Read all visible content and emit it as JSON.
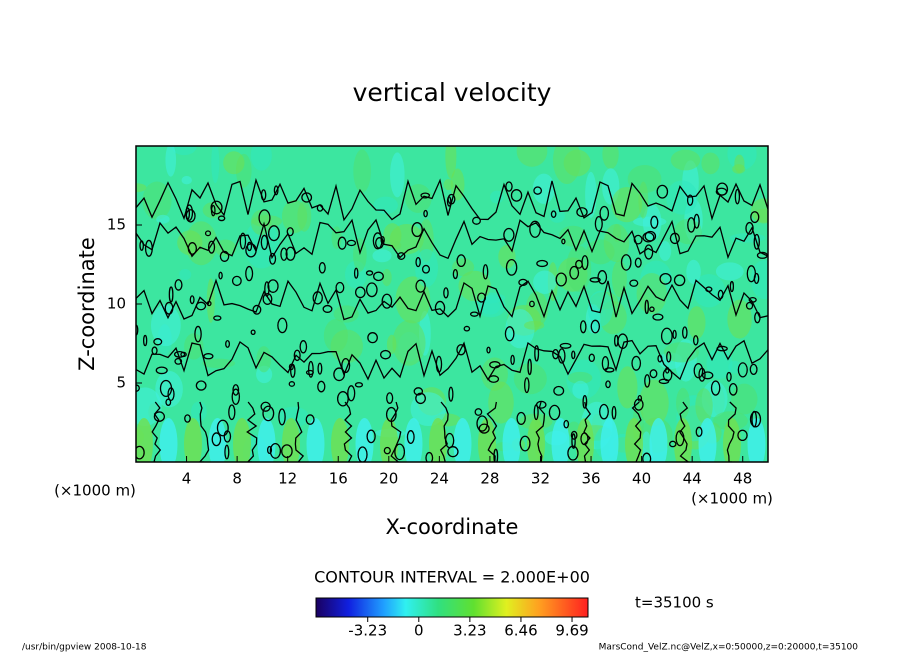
{
  "chart_data": {
    "type": "contour",
    "title": "vertical velocity",
    "x_label": "X-coordinate",
    "y_label": "Z-coordinate",
    "x_unit": "(×1000 m)",
    "xlim": [
      0,
      50
    ],
    "xticks": [
      4,
      8,
      12,
      16,
      20,
      24,
      28,
      32,
      36,
      40,
      44,
      48
    ],
    "ylim": [
      0,
      20
    ],
    "yticks": [
      5,
      10,
      15
    ],
    "contour_interval": "CONTOUR INTERVAL = 2.000E+00",
    "time_label": "t=35100 s",
    "colorbar": {
      "clim": [
        -6.5,
        10.7
      ],
      "ticks": [
        -3.23,
        0,
        3.23,
        6.46,
        9.69
      ]
    },
    "footer_left": "/usr/bin/gpview   2008-10-18",
    "footer_right": "MarsCond_VelZ.nc@VelZ,x=0:50000,z=0:20000,t=35100"
  }
}
